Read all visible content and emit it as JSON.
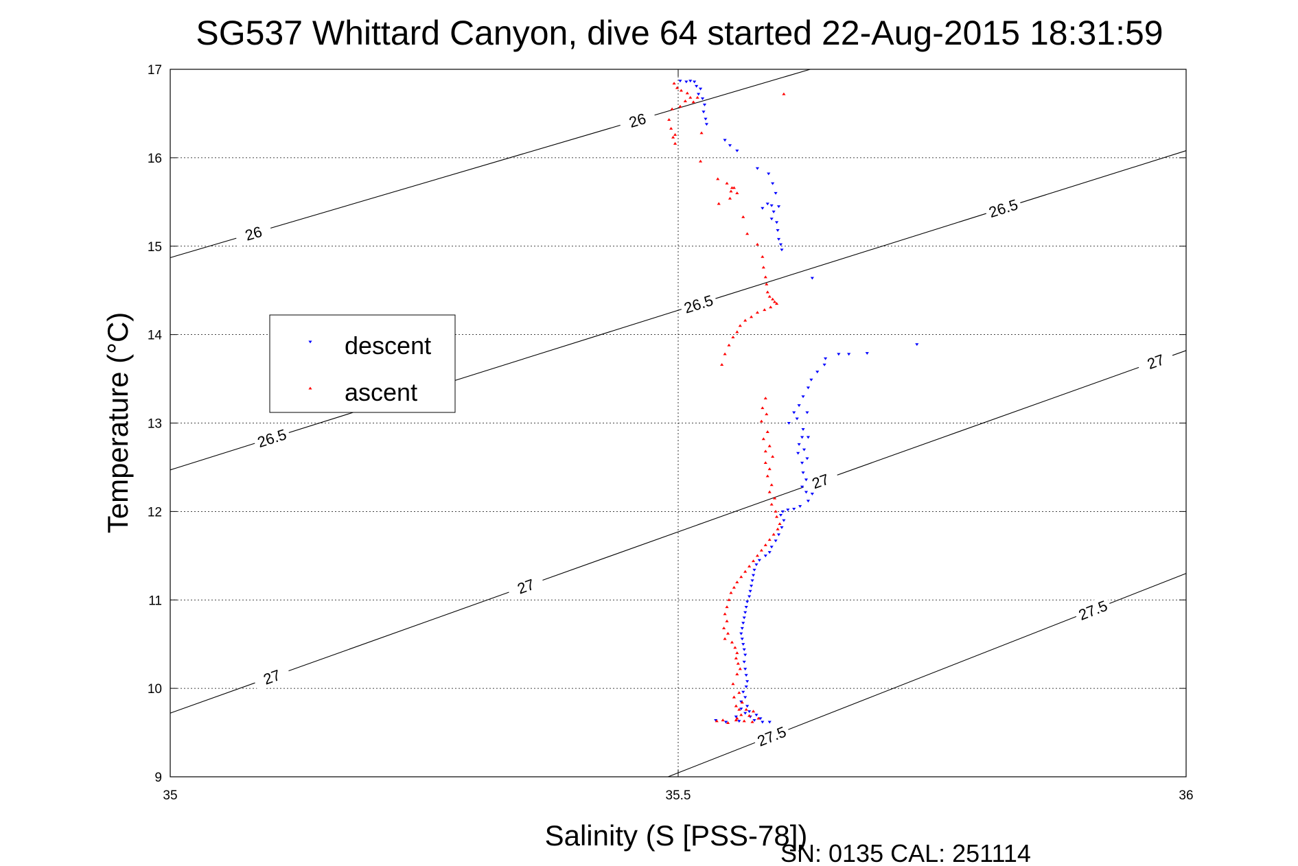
{
  "chart_data": {
    "type": "scatter",
    "title": "SG537 Whittard Canyon, dive 64 started 22-Aug-2015 18:31:59",
    "xlabel": "Salinity (S [PSS-78])",
    "ylabel": "Temperature (°C)",
    "xlim": [
      35,
      36
    ],
    "ylim": [
      9,
      17
    ],
    "x_ticks": [
      "35",
      "35.5",
      "36"
    ],
    "y_ticks": [
      "9",
      "10",
      "11",
      "12",
      "13",
      "14",
      "15",
      "16",
      "17"
    ],
    "grid": true,
    "legend_position": "upper-left",
    "footer": "SN: 0135  CAL: 251114",
    "density_contours": [
      {
        "level": "26",
        "labels": [
          "26",
          "26"
        ],
        "x": [
          35,
          35.63
        ],
        "y": [
          14.87,
          17.0
        ]
      },
      {
        "level": "26.5",
        "labels": [
          "26.5",
          "26.5",
          "26.5"
        ],
        "x": [
          35,
          36
        ],
        "y": [
          12.47,
          16.08
        ]
      },
      {
        "level": "27",
        "labels": [
          "27",
          "27",
          "27",
          "27"
        ],
        "x": [
          35,
          36
        ],
        "y": [
          9.72,
          13.82
        ]
      },
      {
        "level": "27.5",
        "labels": [
          "27.5",
          "27.5"
        ],
        "x": [
          35.49,
          36
        ],
        "y": [
          9.0,
          11.3
        ]
      }
    ],
    "series": [
      {
        "name": "descent",
        "color": "#0000ff",
        "marker": "triangle-down",
        "points": [
          [
            35.502,
            16.87
          ],
          [
            35.508,
            16.86
          ],
          [
            35.512,
            16.87
          ],
          [
            35.516,
            16.86
          ],
          [
            35.518,
            16.81
          ],
          [
            35.522,
            16.78
          ],
          [
            35.52,
            16.72
          ],
          [
            35.524,
            16.67
          ],
          [
            35.526,
            16.6
          ],
          [
            35.525,
            16.52
          ],
          [
            35.527,
            16.44
          ],
          [
            35.528,
            16.38
          ],
          [
            35.546,
            16.2
          ],
          [
            35.551,
            16.14
          ],
          [
            35.558,
            16.08
          ],
          [
            35.578,
            15.88
          ],
          [
            35.589,
            15.82
          ],
          [
            35.593,
            15.71
          ],
          [
            35.596,
            15.6
          ],
          [
            35.588,
            15.48
          ],
          [
            35.583,
            15.43
          ],
          [
            35.592,
            15.46
          ],
          [
            35.599,
            15.45
          ],
          [
            35.594,
            15.39
          ],
          [
            35.592,
            15.31
          ],
          [
            35.597,
            15.27
          ],
          [
            35.598,
            15.18
          ],
          [
            35.599,
            15.08
          ],
          [
            35.601,
            15.02
          ],
          [
            35.602,
            14.96
          ],
          [
            35.632,
            14.64
          ],
          [
            35.658,
            13.78
          ],
          [
            35.668,
            13.78
          ],
          [
            35.686,
            13.79
          ],
          [
            35.735,
            13.89
          ],
          [
            35.645,
            13.73
          ],
          [
            35.644,
            13.66
          ],
          [
            35.637,
            13.58
          ],
          [
            35.631,
            13.49
          ],
          [
            35.628,
            13.4
          ],
          [
            35.623,
            13.3
          ],
          [
            35.619,
            13.2
          ],
          [
            35.614,
            13.12
          ],
          [
            35.627,
            13.12
          ],
          [
            35.617,
            13.05
          ],
          [
            35.609,
            13.0
          ],
          [
            35.623,
            12.93
          ],
          [
            35.622,
            12.84
          ],
          [
            35.628,
            12.84
          ],
          [
            35.619,
            12.76
          ],
          [
            35.618,
            12.66
          ],
          [
            35.624,
            12.7
          ],
          [
            35.627,
            12.6
          ],
          [
            35.622,
            12.55
          ],
          [
            35.623,
            12.44
          ],
          [
            35.626,
            12.36
          ],
          [
            35.622,
            12.28
          ],
          [
            35.626,
            12.22
          ],
          [
            35.632,
            12.2
          ],
          [
            35.628,
            12.12
          ],
          [
            35.62,
            12.06
          ],
          [
            35.614,
            12.03
          ],
          [
            35.608,
            12.02
          ],
          [
            35.603,
            12.0
          ],
          [
            35.601,
            11.96
          ],
          [
            35.604,
            11.9
          ],
          [
            35.602,
            11.82
          ],
          [
            35.599,
            11.74
          ],
          [
            35.596,
            11.67
          ],
          [
            35.592,
            11.6
          ],
          [
            35.59,
            11.54
          ],
          [
            35.586,
            11.5
          ],
          [
            35.58,
            11.45
          ],
          [
            35.577,
            11.4
          ],
          [
            35.575,
            11.34
          ],
          [
            35.574,
            11.28
          ],
          [
            35.573,
            11.22
          ],
          [
            35.572,
            11.16
          ],
          [
            35.571,
            11.1
          ],
          [
            35.57,
            11.04
          ],
          [
            35.568,
            10.98
          ],
          [
            35.567,
            10.92
          ],
          [
            35.566,
            10.86
          ],
          [
            35.565,
            10.8
          ],
          [
            35.564,
            10.74
          ],
          [
            35.563,
            10.68
          ],
          [
            35.562,
            10.62
          ],
          [
            35.563,
            10.56
          ],
          [
            35.564,
            10.5
          ],
          [
            35.565,
            10.44
          ],
          [
            35.566,
            10.38
          ],
          [
            35.565,
            10.3
          ],
          [
            35.566,
            10.22
          ],
          [
            35.567,
            10.15
          ],
          [
            35.568,
            10.08
          ],
          [
            35.567,
            10.02
          ],
          [
            35.564,
            9.96
          ],
          [
            35.566,
            9.9
          ],
          [
            35.562,
            9.85
          ],
          [
            35.568,
            9.8
          ],
          [
            35.57,
            9.74
          ],
          [
            35.571,
            9.68
          ],
          [
            35.575,
            9.64
          ],
          [
            35.583,
            9.62
          ],
          [
            35.56,
            9.63
          ],
          [
            35.547,
            9.62
          ],
          [
            35.537,
            9.64
          ],
          [
            35.557,
            9.68
          ],
          [
            35.566,
            9.72
          ],
          [
            35.562,
            9.77
          ],
          [
            35.59,
            9.62
          ],
          [
            35.577,
            9.7
          ],
          [
            35.581,
            9.66
          ]
        ]
      },
      {
        "name": "ascent",
        "color": "#ff0000",
        "marker": "triangle-up",
        "points": [
          [
            35.496,
            16.84
          ],
          [
            35.499,
            16.79
          ],
          [
            35.503,
            16.76
          ],
          [
            35.509,
            16.73
          ],
          [
            35.512,
            16.68
          ],
          [
            35.515,
            16.63
          ],
          [
            35.507,
            16.64
          ],
          [
            35.494,
            16.55
          ],
          [
            35.491,
            16.43
          ],
          [
            35.493,
            16.33
          ],
          [
            35.495,
            16.23
          ],
          [
            35.497,
            16.16
          ],
          [
            35.497,
            16.26
          ],
          [
            35.502,
            16.58
          ],
          [
            35.519,
            16.68
          ],
          [
            35.604,
            16.72
          ],
          [
            35.523,
            16.28
          ],
          [
            35.522,
            15.96
          ],
          [
            35.539,
            15.76
          ],
          [
            35.548,
            15.71
          ],
          [
            35.552,
            15.62
          ],
          [
            35.551,
            15.54
          ],
          [
            35.54,
            15.48
          ],
          [
            35.553,
            15.66
          ],
          [
            35.555,
            15.66
          ],
          [
            35.558,
            15.6
          ],
          [
            35.564,
            15.33
          ],
          [
            35.568,
            15.14
          ],
          [
            35.578,
            15.02
          ],
          [
            35.583,
            14.88
          ],
          [
            35.584,
            14.76
          ],
          [
            35.586,
            14.65
          ],
          [
            35.587,
            14.57
          ],
          [
            35.588,
            14.48
          ],
          [
            35.59,
            14.43
          ],
          [
            35.593,
            14.4
          ],
          [
            35.595,
            14.37
          ],
          [
            35.597,
            14.35
          ],
          [
            35.591,
            14.31
          ],
          [
            35.585,
            14.28
          ],
          [
            35.578,
            14.25
          ],
          [
            35.572,
            14.2
          ],
          [
            35.566,
            14.16
          ],
          [
            35.561,
            14.1
          ],
          [
            35.558,
            14.03
          ],
          [
            35.554,
            13.97
          ],
          [
            35.55,
            13.88
          ],
          [
            35.546,
            13.78
          ],
          [
            35.543,
            13.66
          ],
          [
            35.586,
            13.28
          ],
          [
            35.583,
            13.17
          ],
          [
            35.587,
            13.1
          ],
          [
            35.582,
            13.02
          ],
          [
            35.588,
            12.9
          ],
          [
            35.584,
            12.82
          ],
          [
            35.59,
            12.74
          ],
          [
            35.586,
            12.68
          ],
          [
            35.593,
            12.62
          ],
          [
            35.586,
            12.55
          ],
          [
            35.59,
            12.48
          ],
          [
            35.588,
            12.4
          ],
          [
            35.592,
            12.3
          ],
          [
            35.59,
            12.22
          ],
          [
            35.595,
            12.15
          ],
          [
            35.592,
            12.08
          ],
          [
            35.596,
            12.0
          ],
          [
            35.597,
            11.94
          ],
          [
            35.6,
            11.86
          ],
          [
            35.598,
            11.8
          ],
          [
            35.594,
            11.74
          ],
          [
            35.59,
            11.68
          ],
          [
            35.586,
            11.62
          ],
          [
            35.582,
            11.56
          ],
          [
            35.578,
            11.5
          ],
          [
            35.574,
            11.44
          ],
          [
            35.57,
            11.38
          ],
          [
            35.566,
            11.32
          ],
          [
            35.562,
            11.26
          ],
          [
            35.558,
            11.2
          ],
          [
            35.555,
            11.14
          ],
          [
            35.552,
            11.08
          ],
          [
            35.55,
            11.0
          ],
          [
            35.548,
            10.92
          ],
          [
            35.546,
            10.84
          ],
          [
            35.548,
            10.76
          ],
          [
            35.545,
            10.68
          ],
          [
            35.549,
            10.62
          ],
          [
            35.546,
            10.56
          ],
          [
            35.553,
            10.52
          ],
          [
            35.556,
            10.46
          ],
          [
            35.558,
            10.4
          ],
          [
            35.557,
            10.34
          ],
          [
            35.559,
            10.28
          ],
          [
            35.561,
            10.22
          ],
          [
            35.558,
            10.16
          ],
          [
            35.554,
            10.05
          ],
          [
            35.56,
            9.95
          ],
          [
            35.555,
            9.9
          ],
          [
            35.563,
            9.84
          ],
          [
            35.557,
            9.8
          ],
          [
            35.567,
            9.76
          ],
          [
            35.574,
            9.74
          ],
          [
            35.562,
            9.7
          ],
          [
            35.558,
            9.66
          ],
          [
            35.565,
            9.63
          ],
          [
            35.573,
            9.62
          ],
          [
            35.557,
            9.64
          ],
          [
            35.544,
            9.64
          ],
          [
            35.538,
            9.63
          ],
          [
            35.549,
            9.61
          ],
          [
            35.579,
            9.66
          ],
          [
            35.57,
            9.69
          ],
          [
            35.56,
            9.76
          ]
        ]
      }
    ]
  }
}
